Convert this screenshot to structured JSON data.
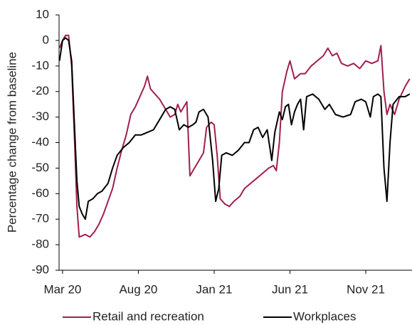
{
  "chart_data": {
    "type": "line",
    "ylabel": "Percentage change from baseline",
    "xlim": [
      -0.23,
      23.05
    ],
    "xticks": [
      {
        "value": 0,
        "label": "Mar 20"
      },
      {
        "value": 5,
        "label": "Aug 20"
      },
      {
        "value": 10,
        "label": "Jan 21"
      },
      {
        "value": 15,
        "label": "Jun 21"
      },
      {
        "value": 20,
        "label": "Nov 21"
      }
    ],
    "ylim": [
      -90,
      10
    ],
    "yticks": [
      10,
      0,
      -10,
      -20,
      -30,
      -40,
      -50,
      -60,
      -70,
      -80,
      -90
    ],
    "legend": "bottom",
    "series": [
      {
        "name": "Retail and recreation",
        "color": "#a01f4f",
        "x": [
          -0.2,
          0,
          0.2,
          0.4,
          0.6,
          0.8,
          0.95,
          1.1,
          1.5,
          1.8,
          2.1,
          2.4,
          2.7,
          3.0,
          3.3,
          3.6,
          3.9,
          4.2,
          4.5,
          4.8,
          5.1,
          5.4,
          5.6,
          5.8,
          6.1,
          6.4,
          6.8,
          7.1,
          7.4,
          7.6,
          7.8,
          8.0,
          8.2,
          8.4,
          8.7,
          9.0,
          9.3,
          9.5,
          9.8,
          10.0,
          10.2,
          10.4,
          10.7,
          11.0,
          11.3,
          11.7,
          12.0,
          12.4,
          12.8,
          13.2,
          13.6,
          13.9,
          14.1,
          14.3,
          14.5,
          14.8,
          15.0,
          15.3,
          15.7,
          16.0,
          16.4,
          16.8,
          17.2,
          17.5,
          17.8,
          18.1,
          18.4,
          18.8,
          19.2,
          19.6,
          20.0,
          20.4,
          20.8,
          21.0,
          21.2,
          21.4,
          21.6,
          21.9,
          22.2,
          22.6,
          22.9
        ],
        "values": [
          -3,
          0,
          2,
          2,
          -10,
          -40,
          -65,
          -77,
          -76,
          -77,
          -75,
          -72,
          -68,
          -63,
          -58,
          -50,
          -43,
          -37,
          -29,
          -26,
          -22,
          -18,
          -14,
          -19,
          -21,
          -23,
          -27,
          -30,
          -29,
          -25,
          -28,
          -26,
          -24,
          -53,
          -50,
          -47,
          -44,
          -34,
          -32,
          -33,
          -45,
          -62,
          -64,
          -65,
          -63,
          -61,
          -58,
          -56,
          -54,
          -52,
          -50,
          -49,
          -51,
          -40,
          -20,
          -12,
          -8,
          -15,
          -13,
          -13,
          -10,
          -8,
          -6,
          -3,
          -6,
          -5,
          -9,
          -10,
          -9,
          -11,
          -8,
          -9,
          -8,
          -2,
          -20,
          -29,
          -25,
          -29,
          -23,
          -18,
          -15
        ]
      },
      {
        "name": "Workplaces",
        "color": "#000000",
        "x": [
          -0.2,
          0,
          0.2,
          0.4,
          0.6,
          0.8,
          0.95,
          1.1,
          1.3,
          1.5,
          1.7,
          2.0,
          2.3,
          2.6,
          3.0,
          3.3,
          3.6,
          4.0,
          4.4,
          4.8,
          5.2,
          5.6,
          6.0,
          6.4,
          6.8,
          7.1,
          7.4,
          7.7,
          8.0,
          8.3,
          8.6,
          8.8,
          9.0,
          9.3,
          9.6,
          9.9,
          10.1,
          10.3,
          10.5,
          10.8,
          11.2,
          11.6,
          12.0,
          12.3,
          12.6,
          12.9,
          13.2,
          13.5,
          13.8,
          14.0,
          14.3,
          14.5,
          14.7,
          14.9,
          15.1,
          15.3,
          15.5,
          15.7,
          15.9,
          16.1,
          16.5,
          16.9,
          17.3,
          17.6,
          18.0,
          18.5,
          19.0,
          19.3,
          19.7,
          20.0,
          20.3,
          20.5,
          20.8,
          21.0,
          21.2,
          21.4,
          21.6,
          21.8,
          22.2,
          22.6,
          22.9
        ],
        "values": [
          -8,
          0,
          1,
          0,
          -8,
          -35,
          -55,
          -65,
          -68,
          -70,
          -63,
          -62,
          -60,
          -59,
          -56,
          -50,
          -45,
          -42,
          -40,
          -37,
          -37,
          -36,
          -35,
          -31,
          -27,
          -26,
          -27,
          -35,
          -33,
          -34,
          -33,
          -32,
          -28,
          -27,
          -30,
          -47,
          -63,
          -58,
          -45,
          -44,
          -45,
          -43,
          -40,
          -40,
          -35,
          -34,
          -38,
          -35,
          -47,
          -36,
          -28,
          -31,
          -26,
          -25,
          -33,
          -28,
          -25,
          -23,
          -35,
          -22,
          -21,
          -23,
          -27,
          -25,
          -29,
          -30,
          -29,
          -24,
          -23,
          -24,
          -30,
          -22,
          -21,
          -22,
          -50,
          -63,
          -40,
          -25,
          -22,
          -22,
          -21
        ]
      }
    ]
  }
}
